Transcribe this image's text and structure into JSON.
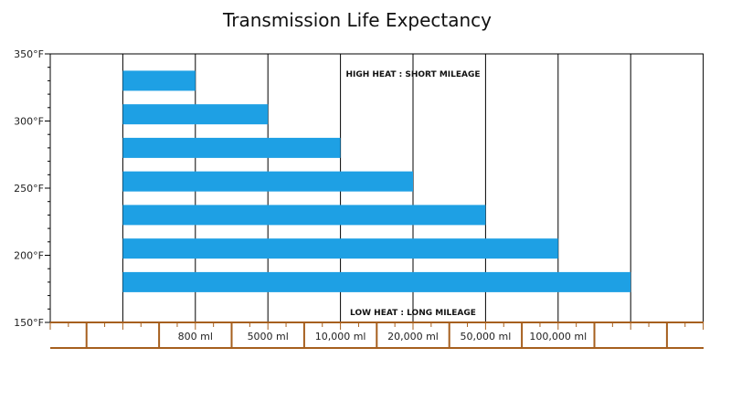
{
  "chart_data": {
    "type": "bar",
    "orientation": "horizontal",
    "title": "Transmission Life Expectancy",
    "categories": [
      "800 ml",
      "5000 ml",
      "10,000 ml",
      "20,000 ml",
      "50,000 ml",
      "100,000 ml",
      ""
    ],
    "bars": [
      {
        "y": 330,
        "x_end": 1
      },
      {
        "y": 305,
        "x_end": 2
      },
      {
        "y": 280,
        "x_end": 3
      },
      {
        "y": 255,
        "x_end": 4
      },
      {
        "y": 230,
        "x_end": 5
      },
      {
        "y": 205,
        "x_end": 6
      },
      {
        "y": 180,
        "x_end": 7
      }
    ],
    "ylim": [
      150,
      350
    ],
    "yticks": [
      "150°F",
      "200°F",
      "250°F",
      "300°F",
      "350°F"
    ],
    "ytick_values": [
      150,
      200,
      250,
      300,
      350
    ],
    "annotations": {
      "top": "HIGH HEAT : SHORT MILEAGE",
      "bottom": "LOW HEAT : LONG MILEAGE"
    },
    "grid": true,
    "colors": {
      "bar": "#1ea0e4",
      "ruler": "#a65f1e",
      "grid": "#000000"
    }
  }
}
